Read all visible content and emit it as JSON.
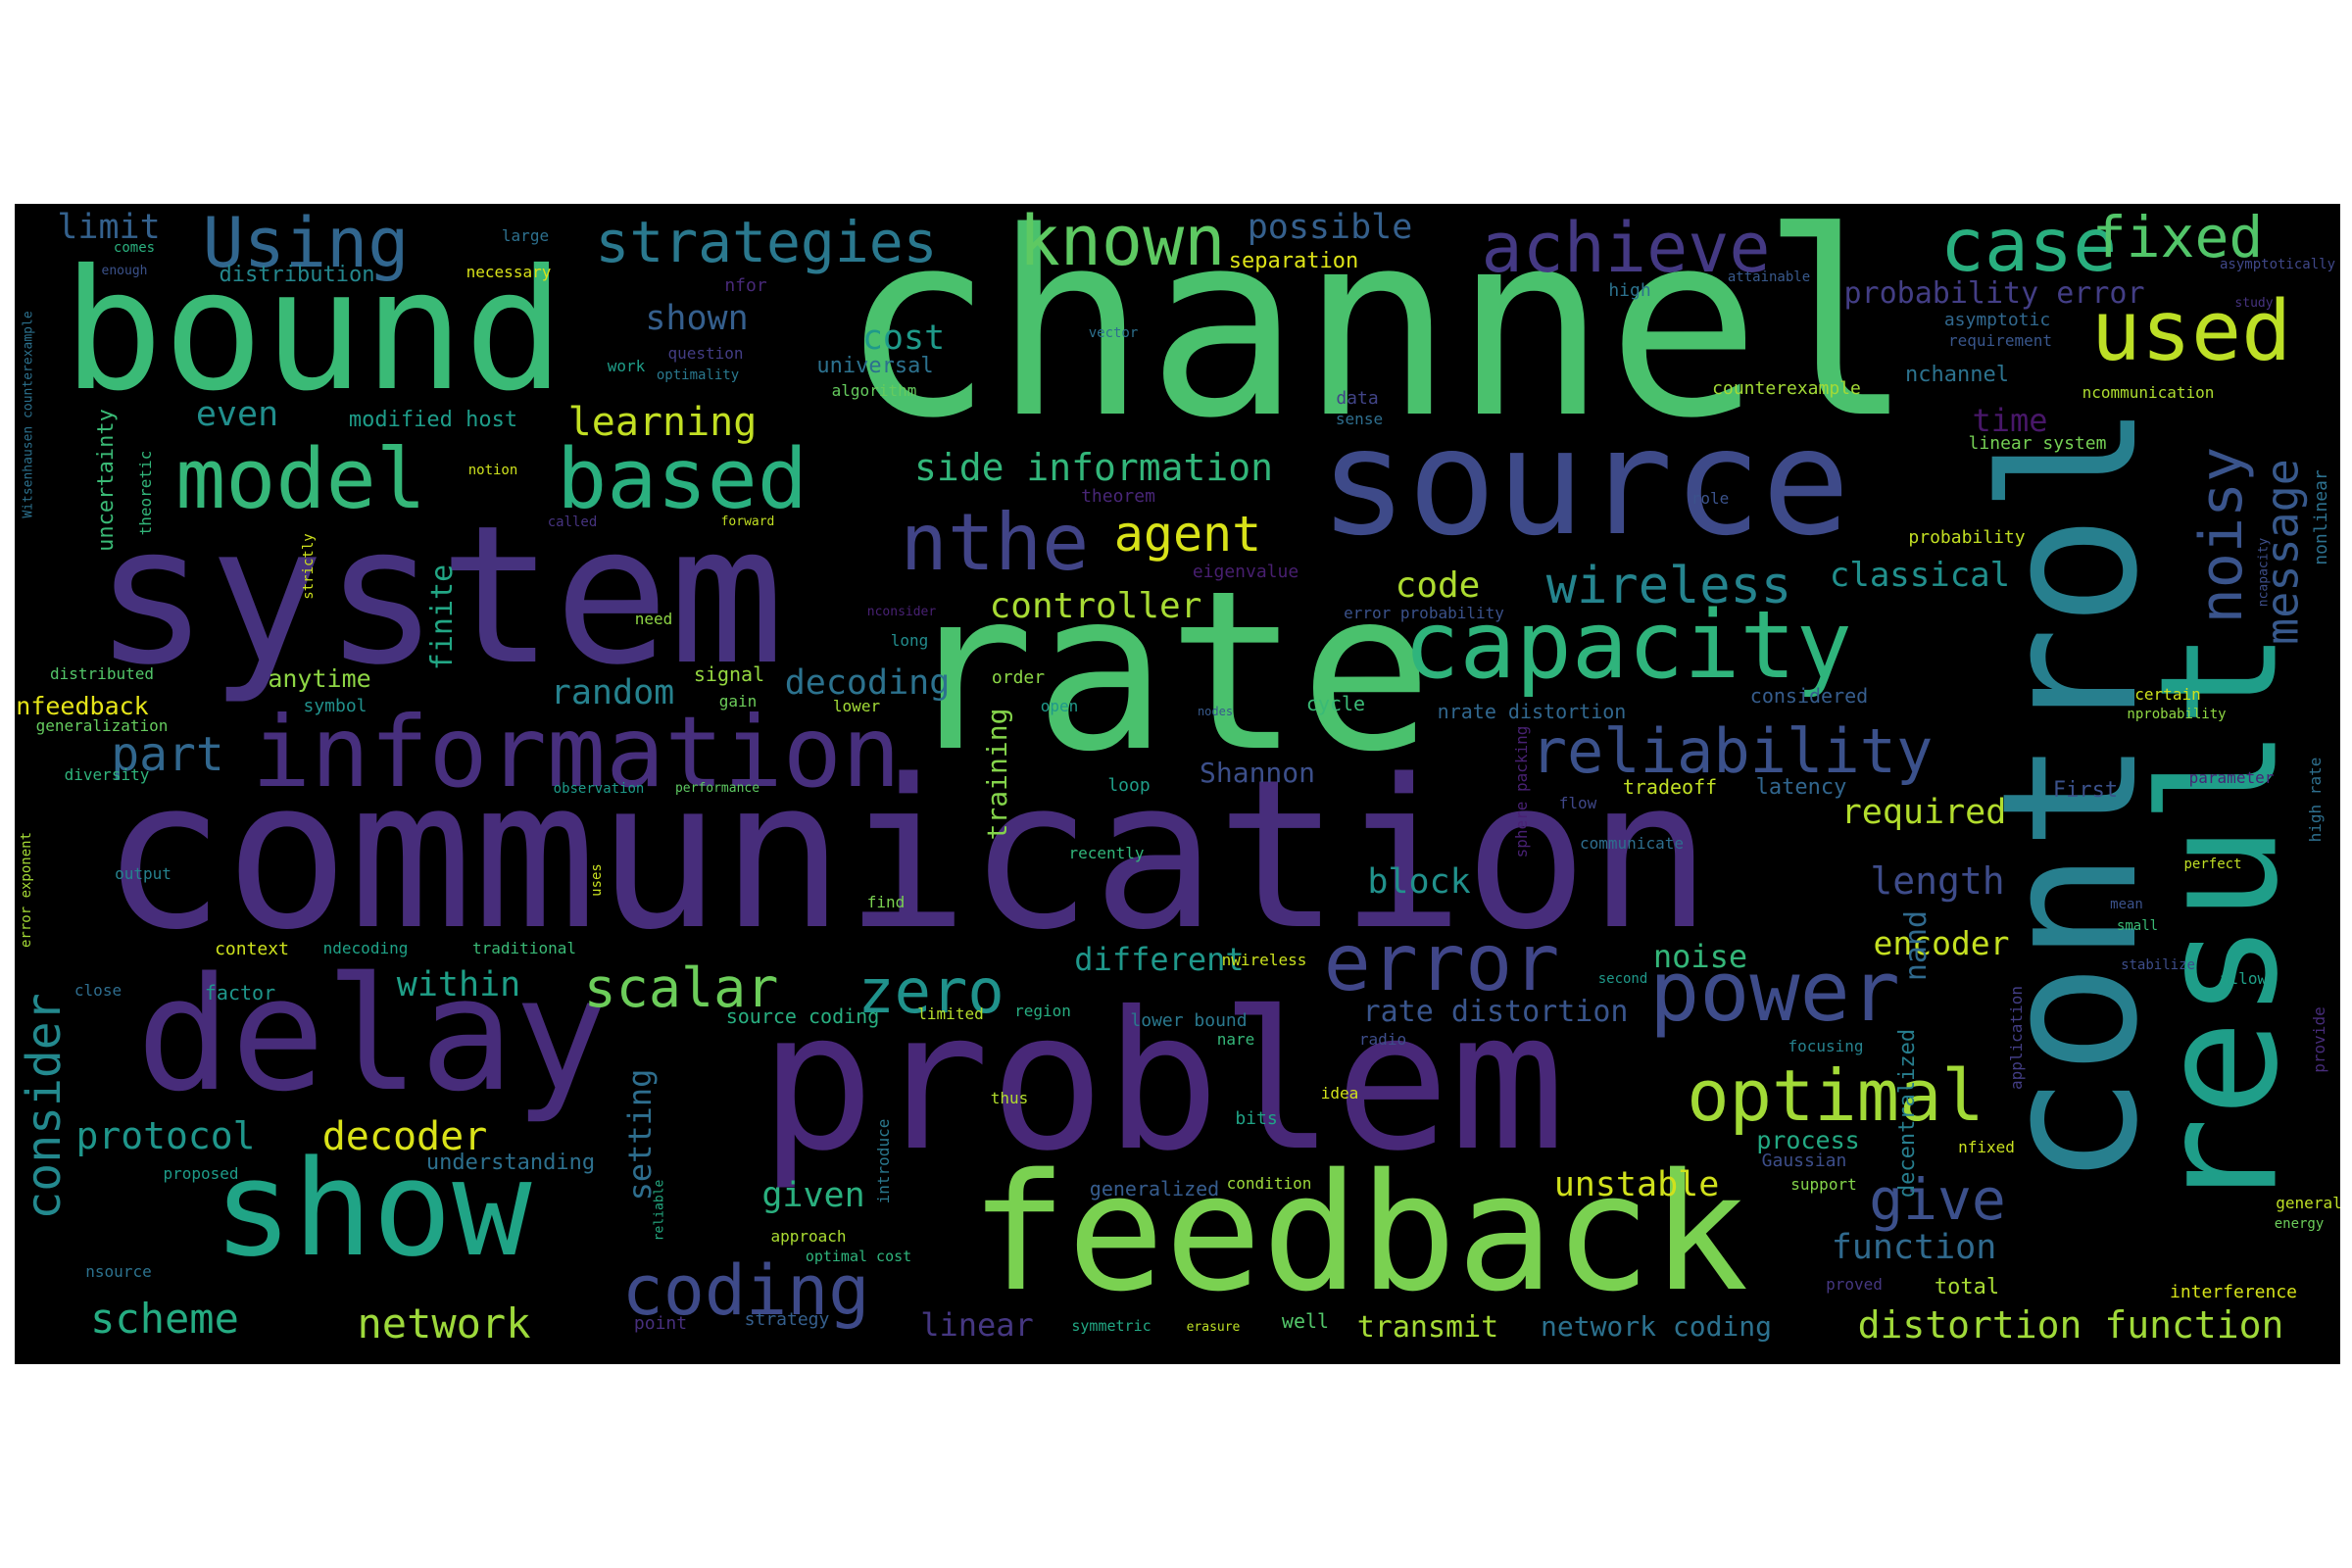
{
  "palette": {
    "background": "#000000",
    "colors": [
      "#440154",
      "#46327e",
      "#365c8d",
      "#277f8e",
      "#1fa187",
      "#4ac16d",
      "#a0da39",
      "#c8e020"
    ]
  },
  "words": [
    {
      "text": "channel",
      "color": "#4ac16d"
    },
    {
      "text": "bound",
      "color": "#3aba76"
    },
    {
      "text": "system",
      "color": "#46327e"
    },
    {
      "text": "rate",
      "color": "#4ac16d"
    },
    {
      "text": "communication",
      "color": "#472d7b"
    },
    {
      "text": "source",
      "color": "#3e4a89"
    },
    {
      "text": "control",
      "color": "#277f8e"
    },
    {
      "text": "result",
      "color": "#1f9e89"
    },
    {
      "text": "problem",
      "color": "#482878"
    },
    {
      "text": "feedback",
      "color": "#7ad151"
    },
    {
      "text": "delay",
      "color": "#472c7a"
    },
    {
      "text": "show",
      "color": "#20a486"
    },
    {
      "text": "information",
      "color": "#472f7d"
    },
    {
      "text": "capacity",
      "color": "#2fb47c"
    },
    {
      "text": "model",
      "color": "#35b779"
    },
    {
      "text": "based",
      "color": "#2ab07f"
    },
    {
      "text": "Using",
      "color": "#31668e"
    },
    {
      "text": "strategies",
      "color": "#2a788e"
    },
    {
      "text": "known",
      "color": "#5ec962"
    },
    {
      "text": "achieve",
      "color": "#443983"
    },
    {
      "text": "case",
      "color": "#29af7f"
    },
    {
      "text": "fixed",
      "color": "#52c569"
    },
    {
      "text": "used",
      "color": "#bddf26"
    },
    {
      "text": "nthe",
      "color": "#414487"
    },
    {
      "text": "power",
      "color": "#3e4c8a"
    },
    {
      "text": "error",
      "color": "#404688"
    },
    {
      "text": "optimal",
      "color": "#a2da37"
    },
    {
      "text": "coding",
      "color": "#3e4a89"
    },
    {
      "text": "reliability",
      "color": "#3b518b"
    },
    {
      "text": "noisy",
      "color": "#3a548c"
    },
    {
      "text": "message",
      "color": "#38598c"
    },
    {
      "text": "give",
      "color": "#3c508b"
    },
    {
      "text": "wireless",
      "color": "#25848e"
    },
    {
      "text": "zero",
      "color": "#20928c"
    },
    {
      "text": "scalar",
      "color": "#6ccd5a"
    },
    {
      "text": "consider",
      "color": "#23898e"
    },
    {
      "text": "agent",
      "color": "#d8e219"
    },
    {
      "text": "part",
      "color": "#31678e"
    },
    {
      "text": "learning",
      "color": "#c2df23"
    },
    {
      "text": "scheme",
      "color": "#25ac82"
    },
    {
      "text": "network",
      "color": "#9dd93b"
    },
    {
      "text": "decoder",
      "color": "#dae319"
    },
    {
      "text": "protocol",
      "color": "#1f968b"
    },
    {
      "text": "side information",
      "color": "#32b67a"
    },
    {
      "text": "controller",
      "color": "#a8db34"
    },
    {
      "text": "code",
      "color": "#addc30"
    },
    {
      "text": "classical",
      "color": "#21908d"
    },
    {
      "text": "random",
      "color": "#26828e"
    },
    {
      "text": "decoding",
      "color": "#2c728e"
    },
    {
      "text": "within",
      "color": "#1fa088"
    },
    {
      "text": "cost",
      "color": "#1f9a8a"
    },
    {
      "text": "even",
      "color": "#218f8d"
    },
    {
      "text": "limit",
      "color": "#34618d"
    },
    {
      "text": "possible",
      "color": "#35608d"
    },
    {
      "text": "shown",
      "color": "#355f8d"
    },
    {
      "text": "required",
      "color": "#b2dd2d"
    },
    {
      "text": "length",
      "color": "#3e4c8a"
    },
    {
      "text": "time",
      "color": "#481769"
    },
    {
      "text": "block",
      "color": "#21918c"
    },
    {
      "text": "different",
      "color": "#1f988b"
    },
    {
      "text": "encoder",
      "color": "#c5e021"
    },
    {
      "text": "noise",
      "color": "#34b679"
    },
    {
      "text": "unstable",
      "color": "#d0e11c"
    },
    {
      "text": "given",
      "color": "#2ab07f"
    },
    {
      "text": "function",
      "color": "#306a8e"
    },
    {
      "text": "distortion function",
      "color": "#a0da39"
    },
    {
      "text": "transmit",
      "color": "#a5db36"
    },
    {
      "text": "network coding",
      "color": "#2c718e"
    },
    {
      "text": "linear",
      "color": "#453781"
    },
    {
      "text": "rate distortion",
      "color": "#39558c"
    },
    {
      "text": "setting",
      "color": "#2e6e8e"
    },
    {
      "text": "finite",
      "color": "#22a785"
    },
    {
      "text": "Shannon",
      "color": "#3c4f8a"
    },
    {
      "text": "training",
      "color": "#84d44b"
    },
    {
      "text": "nand",
      "color": "#306a8e"
    },
    {
      "text": "probability error",
      "color": "#433e85"
    },
    {
      "text": "understanding",
      "color": "#2d708e"
    },
    {
      "text": "decentralized",
      "color": "#277e8e"
    },
    {
      "text": "uncertainty",
      "color": "#3aba76"
    },
    {
      "text": "process",
      "color": "#23a983"
    },
    {
      "text": "nfeedback",
      "color": "#e5e419"
    },
    {
      "text": "anytime",
      "color": "#8ed645"
    },
    {
      "text": "universal",
      "color": "#2c718e"
    },
    {
      "text": "distribution",
      "color": "#24878e"
    },
    {
      "text": "modified host",
      "color": "#1e9c89"
    },
    {
      "text": "separation",
      "color": "#dde318"
    },
    {
      "text": "counterexample",
      "color": "#a2da37"
    },
    {
      "text": "linear system",
      "color": "#75d054"
    },
    {
      "text": "latency",
      "color": "#31668e"
    },
    {
      "text": "tradeoff",
      "color": "#c0df25"
    },
    {
      "text": "considered",
      "color": "#365d8d"
    },
    {
      "text": "nrate distortion",
      "color": "#31678e"
    },
    {
      "text": "nchannel",
      "color": "#2c728e"
    },
    {
      "text": "First",
      "color": "#3b528b"
    },
    {
      "text": "Gaussian",
      "color": "#3d4e8a"
    },
    {
      "text": "context",
      "color": "#cde11d"
    },
    {
      "text": "ndecoding",
      "color": "#1fa287"
    },
    {
      "text": "source coding",
      "color": "#28ae80"
    },
    {
      "text": "lower bound",
      "color": "#2a788e"
    },
    {
      "text": "generalized",
      "color": "#365c8d"
    },
    {
      "text": "strategy",
      "color": "#355f8d"
    },
    {
      "text": "symmetric",
      "color": "#22a884"
    },
    {
      "text": "well",
      "color": "#52c569"
    },
    {
      "text": "point",
      "color": "#472f7d"
    },
    {
      "text": "radio",
      "color": "#3d4d8a"
    },
    {
      "text": "factor",
      "color": "#1f968b"
    },
    {
      "text": "signal",
      "color": "#95d840"
    },
    {
      "text": "gain",
      "color": "#6ccd5a"
    },
    {
      "text": "symbol",
      "color": "#21918c"
    },
    {
      "text": "order",
      "color": "#8bd646"
    },
    {
      "text": "cycle",
      "color": "#3aba76"
    },
    {
      "text": "loop",
      "color": "#1f9e89"
    },
    {
      "text": "data",
      "color": "#414487"
    },
    {
      "text": "sense",
      "color": "#2e6e8e"
    },
    {
      "text": "theorem",
      "color": "#482677"
    },
    {
      "text": "eigenvalue",
      "color": "#481f70"
    },
    {
      "text": "error probability",
      "color": "#3b528b"
    },
    {
      "text": "probability",
      "color": "#c2df23"
    },
    {
      "text": "ncommunication",
      "color": "#addc30"
    },
    {
      "text": "requirement",
      "color": "#39568c"
    },
    {
      "text": "asymptotic",
      "color": "#31688e"
    },
    {
      "text": "high",
      "color": "#2c728e"
    },
    {
      "text": "attainable",
      "color": "#38598c"
    },
    {
      "text": "asymptotically",
      "color": "#3f4788"
    },
    {
      "text": "study",
      "color": "#46337f"
    },
    {
      "text": "role",
      "color": "#3b528b"
    },
    {
      "text": "nonlinear",
      "color": "#2d708e"
    },
    {
      "text": "ncapacity",
      "color": "#3d4e8a"
    },
    {
      "text": "certain",
      "color": "#cde11d"
    },
    {
      "text": "nprobability",
      "color": "#8fd744"
    },
    {
      "text": "parameter",
      "color": "#482475"
    },
    {
      "text": "high rate",
      "color": "#2e6f8e"
    },
    {
      "text": "perfect",
      "color": "#c0df25"
    },
    {
      "text": "mean",
      "color": "#3b528b"
    },
    {
      "text": "small",
      "color": "#3aba76"
    },
    {
      "text": "allow",
      "color": "#1fa088"
    },
    {
      "text": "provide",
      "color": "#472c7a"
    },
    {
      "text": "application",
      "color": "#433e85"
    },
    {
      "text": "support",
      "color": "#84d44b"
    },
    {
      "text": "nfixed",
      "color": "#c8e020"
    },
    {
      "text": "general",
      "color": "#bddf26"
    },
    {
      "text": "energy",
      "color": "#6ccd5a"
    },
    {
      "text": "interference",
      "color": "#d5e21a"
    },
    {
      "text": "total",
      "color": "#a8db34"
    },
    {
      "text": "proved",
      "color": "#453781"
    },
    {
      "text": "condition",
      "color": "#9dd93b"
    },
    {
      "text": "communicate",
      "color": "#2e6e8e"
    },
    {
      "text": "stabilize",
      "color": "#3d4d8a"
    },
    {
      "text": "focusing",
      "color": "#26828e"
    },
    {
      "text": "nare",
      "color": "#35b779"
    },
    {
      "text": "idea",
      "color": "#d2e21b"
    },
    {
      "text": "thus",
      "color": "#b2dd2d"
    },
    {
      "text": "bits",
      "color": "#20a486"
    },
    {
      "text": "introduce",
      "color": "#2a788e"
    },
    {
      "text": "sphere packing",
      "color": "#482173"
    },
    {
      "text": "flow",
      "color": "#3f4788"
    },
    {
      "text": "nwireless",
      "color": "#cae11f"
    },
    {
      "text": "second",
      "color": "#1f998a"
    },
    {
      "text": "region",
      "color": "#27ad81"
    },
    {
      "text": "limited",
      "color": "#b5de2b"
    },
    {
      "text": "open",
      "color": "#1f998a"
    },
    {
      "text": "lower",
      "color": "#a2da37"
    },
    {
      "text": "long",
      "color": "#228c8d"
    },
    {
      "text": "need",
      "color": "#8ed645"
    },
    {
      "text": "nconsider",
      "color": "#482173"
    },
    {
      "text": "nodes",
      "color": "#375a8c"
    },
    {
      "text": "forward",
      "color": "#c2df23"
    },
    {
      "text": "called",
      "color": "#46337f"
    },
    {
      "text": "strictly",
      "color": "#cde11d"
    },
    {
      "text": "recently",
      "color": "#32b67a"
    },
    {
      "text": "erasure",
      "color": "#bddf26"
    },
    {
      "text": "find",
      "color": "#7ad151"
    },
    {
      "text": "uses",
      "color": "#c8e020"
    },
    {
      "text": "optimal cost",
      "color": "#2fb47c"
    },
    {
      "text": "approach",
      "color": "#aadc32"
    },
    {
      "text": "reliable",
      "color": "#25ab82"
    },
    {
      "text": "traditional",
      "color": "#3aba76"
    },
    {
      "text": "performance",
      "color": "#5ec962"
    },
    {
      "text": "observation",
      "color": "#1e9b8a"
    },
    {
      "text": "diversity",
      "color": "#2fb47c"
    },
    {
      "text": "generalization",
      "color": "#65cb5e"
    },
    {
      "text": "distributed",
      "color": "#52c569"
    },
    {
      "text": "output",
      "color": "#26828e"
    },
    {
      "text": "close",
      "color": "#2e6d8e"
    },
    {
      "text": "proposed",
      "color": "#1e9c89"
    },
    {
      "text": "nsource",
      "color": "#2c728e"
    },
    {
      "text": "error exponent",
      "color": "#a5db36"
    },
    {
      "text": "Witsenhausen counterexample",
      "color": "#2c718e"
    },
    {
      "text": "comes",
      "color": "#2ab07f"
    },
    {
      "text": "enough",
      "color": "#3b528b"
    },
    {
      "text": "necessary",
      "color": "#d8e219"
    },
    {
      "text": "large",
      "color": "#2d708e"
    },
    {
      "text": "nfor",
      "color": "#482979"
    },
    {
      "text": "question",
      "color": "#433d84"
    },
    {
      "text": "optimality",
      "color": "#2a788e"
    },
    {
      "text": "work",
      "color": "#1f9e89"
    },
    {
      "text": "notion",
      "color": "#cde11d"
    },
    {
      "text": "theoretic",
      "color": "#32b67a"
    },
    {
      "text": "algorithm",
      "color": "#65cb5e"
    },
    {
      "text": "vector",
      "color": "#2d708e"
    }
  ]
}
